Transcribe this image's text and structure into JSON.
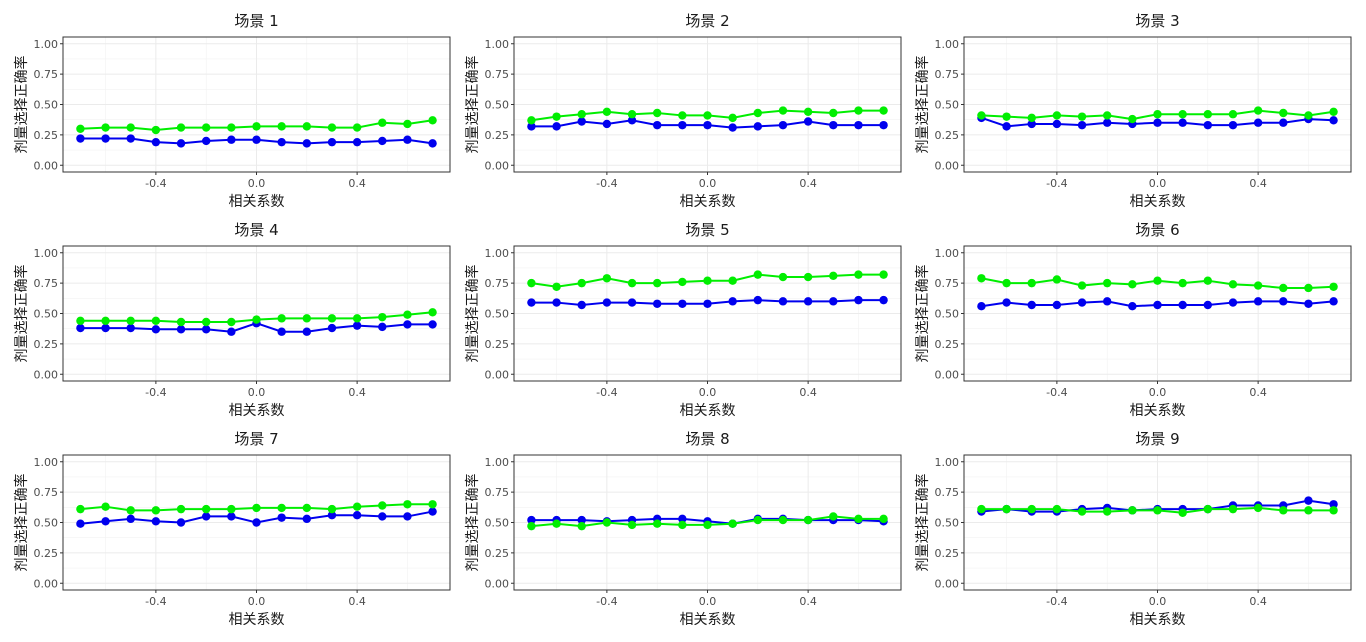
{
  "chart_data": [
    {
      "type": "line",
      "title": "场景 1",
      "xlabel": "相关系数",
      "ylabel": "剂量选择正确率",
      "xlim": [
        -0.7,
        0.7
      ],
      "ylim": [
        0,
        1
      ],
      "xticks": [
        "-0.4",
        "0.0",
        "0.4"
      ],
      "yticks": [
        "0.00",
        "0.25",
        "0.50",
        "0.75",
        "1.00"
      ],
      "grid": true,
      "x": [
        -0.7,
        -0.6,
        -0.5,
        -0.4,
        -0.3,
        -0.2,
        -0.1,
        0.0,
        0.1,
        0.2,
        0.3,
        0.4,
        0.5,
        0.6,
        0.7
      ],
      "series": [
        {
          "color": "#0000ee",
          "values": [
            0.22,
            0.22,
            0.22,
            0.19,
            0.18,
            0.2,
            0.21,
            0.21,
            0.19,
            0.18,
            0.19,
            0.19,
            0.2,
            0.21,
            0.18
          ]
        },
        {
          "color": "#00ee00",
          "values": [
            0.3,
            0.31,
            0.31,
            0.29,
            0.31,
            0.31,
            0.31,
            0.32,
            0.32,
            0.32,
            0.31,
            0.31,
            0.35,
            0.34,
            0.37
          ]
        }
      ]
    },
    {
      "type": "line",
      "title": "场景 2",
      "xlabel": "相关系数",
      "ylabel": "剂量选择正确率",
      "xlim": [
        -0.7,
        0.7
      ],
      "ylim": [
        0,
        1
      ],
      "xticks": [
        "-0.4",
        "0.0",
        "0.4"
      ],
      "yticks": [
        "0.00",
        "0.25",
        "0.50",
        "0.75",
        "1.00"
      ],
      "grid": true,
      "x": [
        -0.7,
        -0.6,
        -0.5,
        -0.4,
        -0.3,
        -0.2,
        -0.1,
        0.0,
        0.1,
        0.2,
        0.3,
        0.4,
        0.5,
        0.6,
        0.7
      ],
      "series": [
        {
          "color": "#0000ee",
          "values": [
            0.32,
            0.32,
            0.36,
            0.34,
            0.37,
            0.33,
            0.33,
            0.33,
            0.31,
            0.32,
            0.33,
            0.36,
            0.33,
            0.33,
            0.33
          ]
        },
        {
          "color": "#00ee00",
          "values": [
            0.37,
            0.4,
            0.42,
            0.44,
            0.42,
            0.43,
            0.41,
            0.41,
            0.39,
            0.43,
            0.45,
            0.44,
            0.43,
            0.45,
            0.45
          ]
        }
      ]
    },
    {
      "type": "line",
      "title": "场景 3",
      "xlabel": "相关系数",
      "ylabel": "剂量选择正确率",
      "xlim": [
        -0.7,
        0.7
      ],
      "ylim": [
        0,
        1
      ],
      "xticks": [
        "-0.4",
        "0.0",
        "0.4"
      ],
      "yticks": [
        "0.00",
        "0.25",
        "0.50",
        "0.75",
        "1.00"
      ],
      "grid": true,
      "x": [
        -0.7,
        -0.6,
        -0.5,
        -0.4,
        -0.3,
        -0.2,
        -0.1,
        0.0,
        0.1,
        0.2,
        0.3,
        0.4,
        0.5,
        0.6,
        0.7
      ],
      "series": [
        {
          "color": "#0000ee",
          "values": [
            0.39,
            0.32,
            0.34,
            0.34,
            0.33,
            0.35,
            0.34,
            0.35,
            0.35,
            0.33,
            0.33,
            0.35,
            0.35,
            0.38,
            0.37
          ]
        },
        {
          "color": "#00ee00",
          "values": [
            0.41,
            0.4,
            0.39,
            0.41,
            0.4,
            0.41,
            0.38,
            0.42,
            0.42,
            0.42,
            0.42,
            0.45,
            0.43,
            0.41,
            0.44
          ]
        }
      ]
    },
    {
      "type": "line",
      "title": "场景 4",
      "xlabel": "相关系数",
      "ylabel": "剂量选择正确率",
      "xlim": [
        -0.7,
        0.7
      ],
      "ylim": [
        0,
        1
      ],
      "xticks": [
        "-0.4",
        "0.0",
        "0.4"
      ],
      "yticks": [
        "0.00",
        "0.25",
        "0.50",
        "0.75",
        "1.00"
      ],
      "grid": true,
      "x": [
        -0.7,
        -0.6,
        -0.5,
        -0.4,
        -0.3,
        -0.2,
        -0.1,
        0.0,
        0.1,
        0.2,
        0.3,
        0.4,
        0.5,
        0.6,
        0.7
      ],
      "series": [
        {
          "color": "#0000ee",
          "values": [
            0.38,
            0.38,
            0.38,
            0.37,
            0.37,
            0.37,
            0.35,
            0.42,
            0.35,
            0.35,
            0.38,
            0.4,
            0.39,
            0.41,
            0.41
          ]
        },
        {
          "color": "#00ee00",
          "values": [
            0.44,
            0.44,
            0.44,
            0.44,
            0.43,
            0.43,
            0.43,
            0.45,
            0.46,
            0.46,
            0.46,
            0.46,
            0.47,
            0.49,
            0.51
          ]
        }
      ]
    },
    {
      "type": "line",
      "title": "场景 5",
      "xlabel": "相关系数",
      "ylabel": "剂量选择正确率",
      "xlim": [
        -0.7,
        0.7
      ],
      "ylim": [
        0,
        1
      ],
      "xticks": [
        "-0.4",
        "0.0",
        "0.4"
      ],
      "yticks": [
        "0.00",
        "0.25",
        "0.50",
        "0.75",
        "1.00"
      ],
      "grid": true,
      "x": [
        -0.7,
        -0.6,
        -0.5,
        -0.4,
        -0.3,
        -0.2,
        -0.1,
        0.0,
        0.1,
        0.2,
        0.3,
        0.4,
        0.5,
        0.6,
        0.7
      ],
      "series": [
        {
          "color": "#0000ee",
          "values": [
            0.59,
            0.59,
            0.57,
            0.59,
            0.59,
            0.58,
            0.58,
            0.58,
            0.6,
            0.61,
            0.6,
            0.6,
            0.6,
            0.61,
            0.61
          ]
        },
        {
          "color": "#00ee00",
          "values": [
            0.75,
            0.72,
            0.75,
            0.79,
            0.75,
            0.75,
            0.76,
            0.77,
            0.77,
            0.82,
            0.8,
            0.8,
            0.81,
            0.82,
            0.82
          ]
        }
      ]
    },
    {
      "type": "line",
      "title": "场景 6",
      "xlabel": "相关系数",
      "ylabel": "剂量选择正确率",
      "xlim": [
        -0.7,
        0.7
      ],
      "ylim": [
        0,
        1
      ],
      "xticks": [
        "-0.4",
        "0.0",
        "0.4"
      ],
      "yticks": [
        "0.00",
        "0.25",
        "0.50",
        "0.75",
        "1.00"
      ],
      "grid": true,
      "x": [
        -0.7,
        -0.6,
        -0.5,
        -0.4,
        -0.3,
        -0.2,
        -0.1,
        0.0,
        0.1,
        0.2,
        0.3,
        0.4,
        0.5,
        0.6,
        0.7
      ],
      "series": [
        {
          "color": "#0000ee",
          "values": [
            0.56,
            0.59,
            0.57,
            0.57,
            0.59,
            0.6,
            0.56,
            0.57,
            0.57,
            0.57,
            0.59,
            0.6,
            0.6,
            0.58,
            0.6
          ]
        },
        {
          "color": "#00ee00",
          "values": [
            0.79,
            0.75,
            0.75,
            0.78,
            0.73,
            0.75,
            0.74,
            0.77,
            0.75,
            0.77,
            0.74,
            0.73,
            0.71,
            0.71,
            0.72
          ]
        }
      ]
    },
    {
      "type": "line",
      "title": "场景 7",
      "xlabel": "相关系数",
      "ylabel": "剂量选择正确率",
      "xlim": [
        -0.7,
        0.7
      ],
      "ylim": [
        0,
        1
      ],
      "xticks": [
        "-0.4",
        "0.0",
        "0.4"
      ],
      "yticks": [
        "0.00",
        "0.25",
        "0.50",
        "0.75",
        "1.00"
      ],
      "grid": true,
      "x": [
        -0.7,
        -0.6,
        -0.5,
        -0.4,
        -0.3,
        -0.2,
        -0.1,
        0.0,
        0.1,
        0.2,
        0.3,
        0.4,
        0.5,
        0.6,
        0.7
      ],
      "series": [
        {
          "color": "#0000ee",
          "values": [
            0.49,
            0.51,
            0.53,
            0.51,
            0.5,
            0.55,
            0.55,
            0.5,
            0.54,
            0.53,
            0.56,
            0.56,
            0.55,
            0.55,
            0.59
          ]
        },
        {
          "color": "#00ee00",
          "values": [
            0.61,
            0.63,
            0.6,
            0.6,
            0.61,
            0.61,
            0.61,
            0.62,
            0.62,
            0.62,
            0.61,
            0.63,
            0.64,
            0.65,
            0.65
          ]
        }
      ]
    },
    {
      "type": "line",
      "title": "场景 8",
      "xlabel": "相关系数",
      "ylabel": "剂量选择正确率",
      "xlim": [
        -0.7,
        0.7
      ],
      "ylim": [
        0,
        1
      ],
      "xticks": [
        "-0.4",
        "0.0",
        "0.4"
      ],
      "yticks": [
        "0.00",
        "0.25",
        "0.50",
        "0.75",
        "1.00"
      ],
      "grid": true,
      "x": [
        -0.7,
        -0.6,
        -0.5,
        -0.4,
        -0.3,
        -0.2,
        -0.1,
        0.0,
        0.1,
        0.2,
        0.3,
        0.4,
        0.5,
        0.6,
        0.7
      ],
      "series": [
        {
          "color": "#0000ee",
          "values": [
            0.52,
            0.52,
            0.52,
            0.51,
            0.52,
            0.53,
            0.53,
            0.51,
            0.49,
            0.53,
            0.53,
            0.52,
            0.52,
            0.52,
            0.51
          ]
        },
        {
          "color": "#00ee00",
          "values": [
            0.47,
            0.49,
            0.47,
            0.5,
            0.48,
            0.49,
            0.48,
            0.48,
            0.49,
            0.52,
            0.52,
            0.52,
            0.55,
            0.53,
            0.53
          ]
        }
      ]
    },
    {
      "type": "line",
      "title": "场景 9",
      "xlabel": "相关系数",
      "ylabel": "剂量选择正确率",
      "xlim": [
        -0.7,
        0.7
      ],
      "ylim": [
        0,
        1
      ],
      "xticks": [
        "-0.4",
        "0.0",
        "0.4"
      ],
      "yticks": [
        "0.00",
        "0.25",
        "0.50",
        "0.75",
        "1.00"
      ],
      "grid": true,
      "x": [
        -0.7,
        -0.6,
        -0.5,
        -0.4,
        -0.3,
        -0.2,
        -0.1,
        0.0,
        0.1,
        0.2,
        0.3,
        0.4,
        0.5,
        0.6,
        0.7
      ],
      "series": [
        {
          "color": "#0000ee",
          "values": [
            0.59,
            0.61,
            0.59,
            0.59,
            0.61,
            0.62,
            0.6,
            0.61,
            0.61,
            0.61,
            0.64,
            0.64,
            0.64,
            0.68,
            0.65
          ]
        },
        {
          "color": "#00ee00",
          "values": [
            0.61,
            0.61,
            0.61,
            0.61,
            0.59,
            0.59,
            0.6,
            0.6,
            0.58,
            0.61,
            0.61,
            0.62,
            0.6,
            0.6,
            0.6
          ]
        }
      ]
    }
  ]
}
